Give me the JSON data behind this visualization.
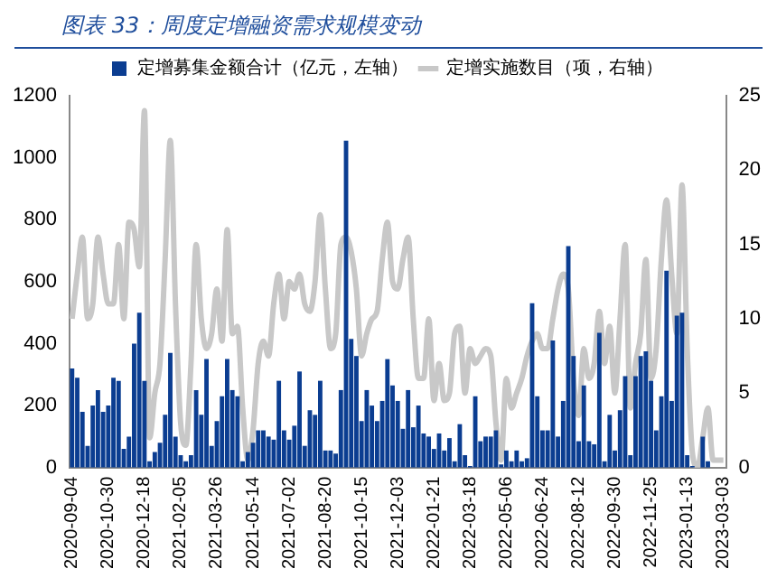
{
  "chart_data": {
    "type": "bar",
    "title": "图表 33：周度定增融资需求规模变动",
    "categories": [
      "2020-09-04",
      null,
      null,
      null,
      null,
      null,
      null,
      "2020-10-30",
      null,
      null,
      null,
      null,
      null,
      null,
      "2020-12-18",
      null,
      null,
      null,
      null,
      null,
      null,
      "2021-02-05",
      null,
      null,
      null,
      null,
      null,
      null,
      "2021-03-26",
      null,
      null,
      null,
      null,
      null,
      null,
      "2021-05-14",
      null,
      null,
      null,
      null,
      null,
      null,
      "2021-07-02",
      null,
      null,
      null,
      null,
      null,
      null,
      "2021-08-20",
      null,
      null,
      null,
      null,
      null,
      null,
      "2021-10-15",
      null,
      null,
      null,
      null,
      null,
      null,
      "2021-12-03",
      null,
      null,
      null,
      null,
      null,
      null,
      "2022-01-21",
      null,
      null,
      null,
      null,
      null,
      null,
      "2022-03-18",
      null,
      null,
      null,
      null,
      null,
      null,
      "2022-05-06",
      null,
      null,
      null,
      null,
      null,
      null,
      "2022-06-24",
      null,
      null,
      null,
      null,
      null,
      null,
      "2022-08-12",
      null,
      null,
      null,
      null,
      null,
      null,
      "2022-09-30",
      null,
      null,
      null,
      null,
      null,
      null,
      "2022-11-25",
      null,
      null,
      null,
      null,
      null,
      null,
      "2023-01-13",
      null,
      null,
      null,
      null,
      null,
      null,
      "2023-03-03"
    ],
    "series": [
      {
        "name": "定增募集金额合计（亿元，左轴）",
        "color": "#0b3d91",
        "values": [
          320,
          290,
          180,
          70,
          200,
          250,
          180,
          200,
          290,
          280,
          60,
          100,
          400,
          500,
          280,
          20,
          50,
          80,
          170,
          370,
          100,
          40,
          20,
          40,
          250,
          170,
          350,
          70,
          150,
          230,
          350,
          250,
          230,
          20,
          50,
          80,
          120,
          120,
          100,
          90,
          280,
          120,
          90,
          135,
          310,
          70,
          185,
          170,
          280,
          55,
          55,
          45,
          250,
          1055,
          415,
          360,
          150,
          250,
          200,
          150,
          215,
          350,
          265,
          215,
          125,
          250,
          130,
          200,
          110,
          100,
          60,
          110,
          55,
          95,
          20,
          140,
          40,
          5,
          230,
          85,
          100,
          100,
          120,
          10,
          55,
          20,
          55,
          20,
          30,
          530,
          230,
          120,
          120,
          410,
          100,
          215,
          715,
          360,
          85,
          265,
          85,
          75,
          435,
          20,
          170,
          55,
          185,
          295,
          40,
          295,
          360,
          375,
          280,
          120,
          230,
          635,
          215,
          490,
          500,
          40,
          5,
          null,
          100,
          20,
          0,
          0,
          0
        ]
      },
      {
        "name": "定增实施数目（项，右轴）",
        "type": "line",
        "axis": "y2",
        "color": "#c8c8c8",
        "values": [
          10,
          13,
          15.5,
          10,
          11,
          15.5,
          13,
          11,
          11,
          15,
          10,
          16.5,
          16,
          13.5,
          24,
          2,
          5,
          7,
          14,
          22,
          11,
          3,
          1.5,
          7,
          15,
          10,
          8,
          9,
          12,
          8.5,
          16,
          9,
          9.5,
          4,
          0.5,
          2.5,
          7,
          8.5,
          7.5,
          11,
          13,
          10,
          12.5,
          12,
          13,
          11,
          10.5,
          12.5,
          17,
          12,
          8,
          9,
          15,
          15.5,
          14.5,
          12,
          7.5,
          9,
          10,
          10.5,
          14,
          16.5,
          12.5,
          12,
          14,
          15.5,
          10,
          6,
          6,
          10,
          4.5,
          7,
          4.5,
          5,
          9,
          9.5,
          5,
          8,
          7,
          7.5,
          8,
          7.5,
          3,
          0.5,
          6,
          4,
          5,
          6,
          7.5,
          8.5,
          9,
          8,
          8,
          10,
          12,
          13,
          12,
          6,
          3.5,
          8,
          6,
          7,
          10.5,
          7,
          9.5,
          5,
          10,
          15,
          4,
          7,
          9,
          14,
          6,
          8,
          14,
          18,
          13,
          9,
          19,
          8,
          1,
          0,
          2,
          4,
          0.5,
          0.5,
          0.5
        ]
      }
    ],
    "ylim": [
      0,
      1200
    ],
    "yticks": [
      0,
      200,
      400,
      600,
      800,
      1000,
      1200
    ],
    "y2lim": [
      0,
      25
    ],
    "y2ticks": [
      0,
      5,
      10,
      15,
      20,
      25
    ],
    "legend": "top",
    "marker": "none"
  }
}
